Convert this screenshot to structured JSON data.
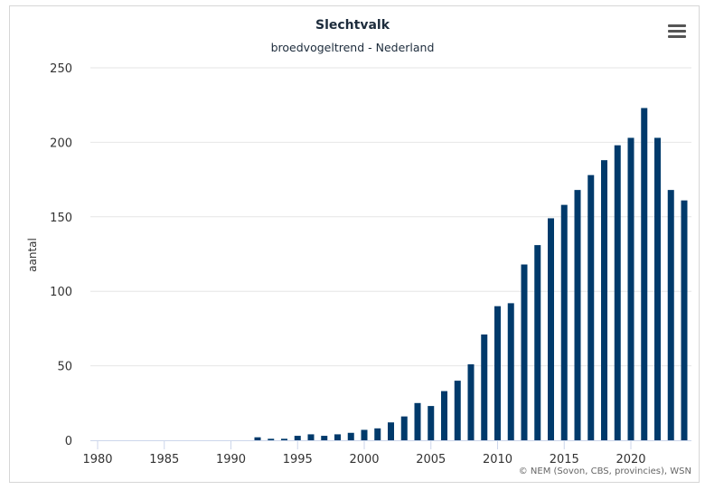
{
  "chart_data": {
    "type": "bar",
    "title": "Slechtvalk",
    "subtitle": "broedvogeltrend - Nederland",
    "xlabel": "",
    "ylabel": "aantal",
    "xlim": [
      1979.5,
      2024.5
    ],
    "ylim": [
      0,
      250
    ],
    "grid": true,
    "x_ticks": [
      1980,
      1985,
      1990,
      1995,
      2000,
      2005,
      2010,
      2015,
      2020
    ],
    "y_ticks": [
      0,
      50,
      100,
      150,
      200,
      250
    ],
    "x": [
      1992,
      1993,
      1994,
      1995,
      1996,
      1997,
      1998,
      1999,
      2000,
      2001,
      2002,
      2003,
      2004,
      2005,
      2006,
      2007,
      2008,
      2009,
      2010,
      2011,
      2012,
      2013,
      2014,
      2015,
      2016,
      2017,
      2018,
      2019,
      2020,
      2021,
      2022,
      2023,
      2024
    ],
    "values": [
      2,
      1,
      1,
      3,
      4,
      3,
      4,
      5,
      7,
      8,
      12,
      16,
      25,
      23,
      33,
      40,
      51,
      71,
      90,
      92,
      118,
      131,
      149,
      158,
      168,
      178,
      188,
      198,
      203,
      223,
      203,
      168,
      161
    ],
    "bar_color": "#003a6b",
    "credits": "© NEM (Sovon, CBS, provincies), WSN"
  },
  "menu": {
    "icon": "hamburger-menu-icon"
  }
}
